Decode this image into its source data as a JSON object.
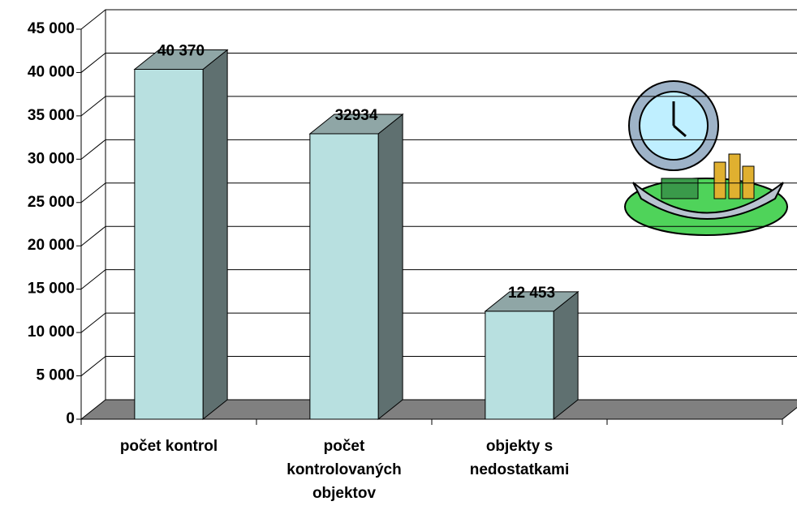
{
  "chart_data": {
    "type": "bar3d",
    "categories": [
      "počet kontrol",
      "počet kontrolovaných objektov",
      "objekty s nedostatkami",
      null
    ],
    "values": [
      40370,
      32934,
      12453,
      null
    ],
    "value_labels": [
      "40 370",
      "32934",
      "12 453",
      null
    ],
    "color": "#b8e0e0",
    "ylim": [
      0,
      45000
    ],
    "yticks": [
      0,
      {
        "value": 5000,
        "label": "5 000"
      },
      {
        "value": 10000,
        "label": "10 000"
      },
      {
        "value": 15000,
        "label": "15 000"
      },
      {
        "value": 20000,
        "label": "20 000"
      },
      {
        "value": 25000,
        "label": "25 000"
      },
      {
        "value": 30000,
        "label": "30 000"
      },
      {
        "value": 35000,
        "label": "35 000"
      },
      {
        "value": 40000,
        "label": "40 000"
      },
      {
        "value": 45000,
        "label": "45 000"
      }
    ],
    "grid": true
  }
}
